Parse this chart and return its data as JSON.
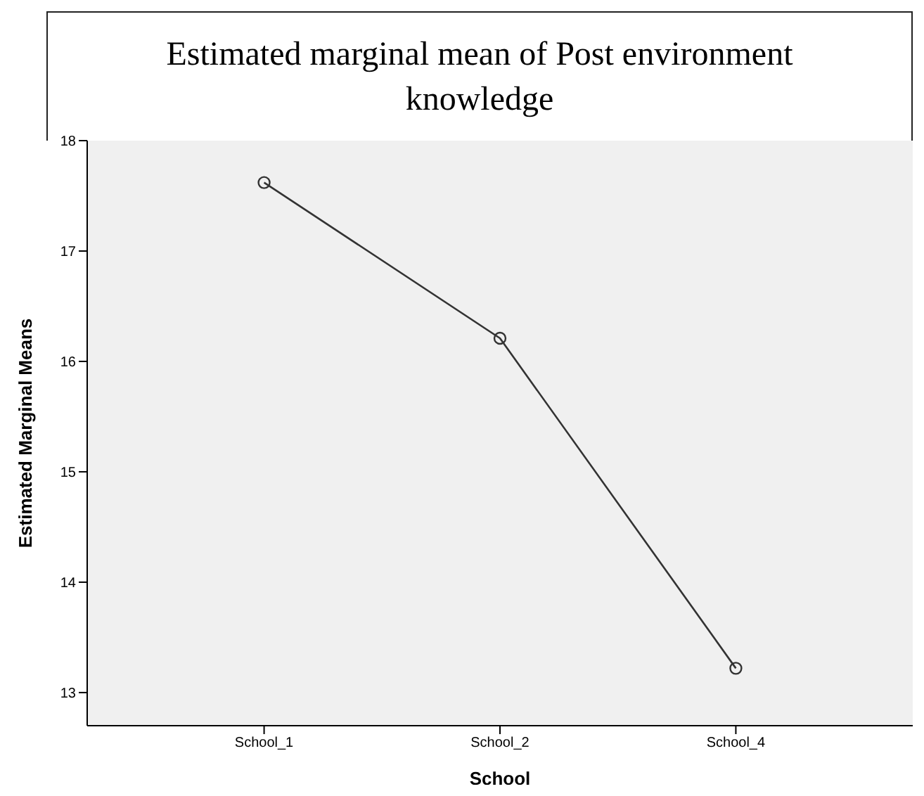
{
  "chart_data": {
    "type": "line",
    "title": "Estimated marginal mean of Post environment knowledge",
    "xlabel": "School",
    "ylabel": "Estimated Marginal Means",
    "categories": [
      "School_1",
      "School_2",
      "School_4"
    ],
    "series": [
      {
        "color": "#333333",
        "values": [
          17.62,
          16.21,
          13.22
        ]
      }
    ],
    "ylim": [
      12.7,
      18
    ],
    "yticks": [
      13,
      14,
      15,
      16,
      17,
      18
    ],
    "legend": false,
    "marker": "circle",
    "line_style": "solid"
  }
}
